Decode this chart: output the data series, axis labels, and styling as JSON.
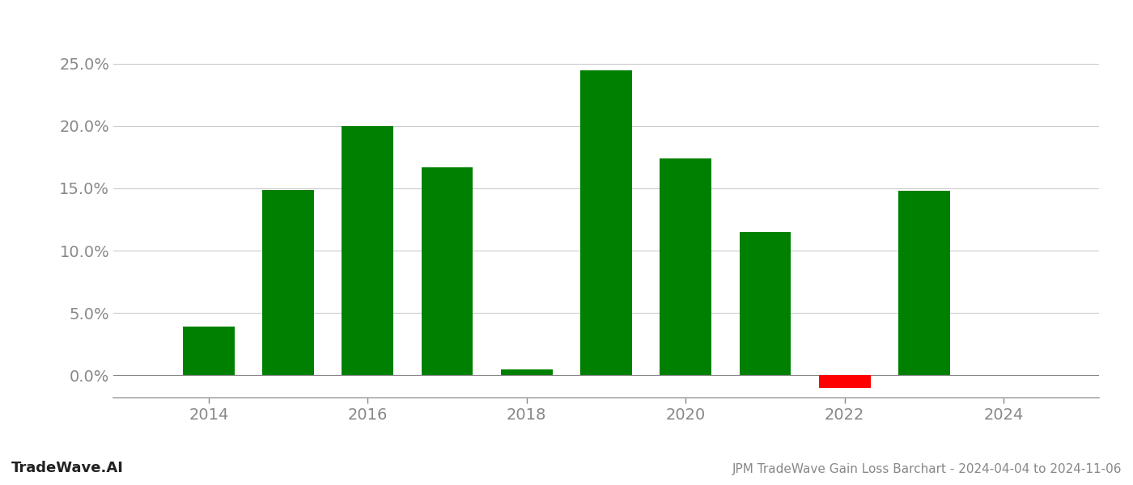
{
  "years": [
    2014,
    2015,
    2016,
    2017,
    2018,
    2019,
    2020,
    2021,
    2022,
    2023
  ],
  "values": [
    0.039,
    0.149,
    0.2,
    0.167,
    0.005,
    0.245,
    0.174,
    0.115,
    -0.01,
    0.148
  ],
  "bar_colors": [
    "#008000",
    "#008000",
    "#008000",
    "#008000",
    "#008000",
    "#008000",
    "#008000",
    "#008000",
    "#ff0000",
    "#008000"
  ],
  "ylim": [
    -0.018,
    0.27
  ],
  "yticks": [
    0.0,
    0.05,
    0.1,
    0.15,
    0.2,
    0.25
  ],
  "ytick_labels": [
    "0.0%",
    "5.0%",
    "10.0%",
    "15.0%",
    "20.0%",
    "25.0%"
  ],
  "xtick_labels": [
    "2014",
    "2016",
    "2018",
    "2020",
    "2022",
    "2024"
  ],
  "xtick_positions": [
    2014,
    2016,
    2018,
    2020,
    2022,
    2024
  ],
  "xlim": [
    2012.8,
    2025.2
  ],
  "bar_width": 0.65,
  "title": "JPM TradeWave Gain Loss Barchart - 2024-04-04 to 2024-11-06",
  "watermark": "TradeWave.AI",
  "background_color": "#ffffff",
  "grid_color": "#cccccc",
  "text_color": "#888888",
  "title_fontsize": 11,
  "watermark_fontsize": 13,
  "tick_fontsize": 14
}
